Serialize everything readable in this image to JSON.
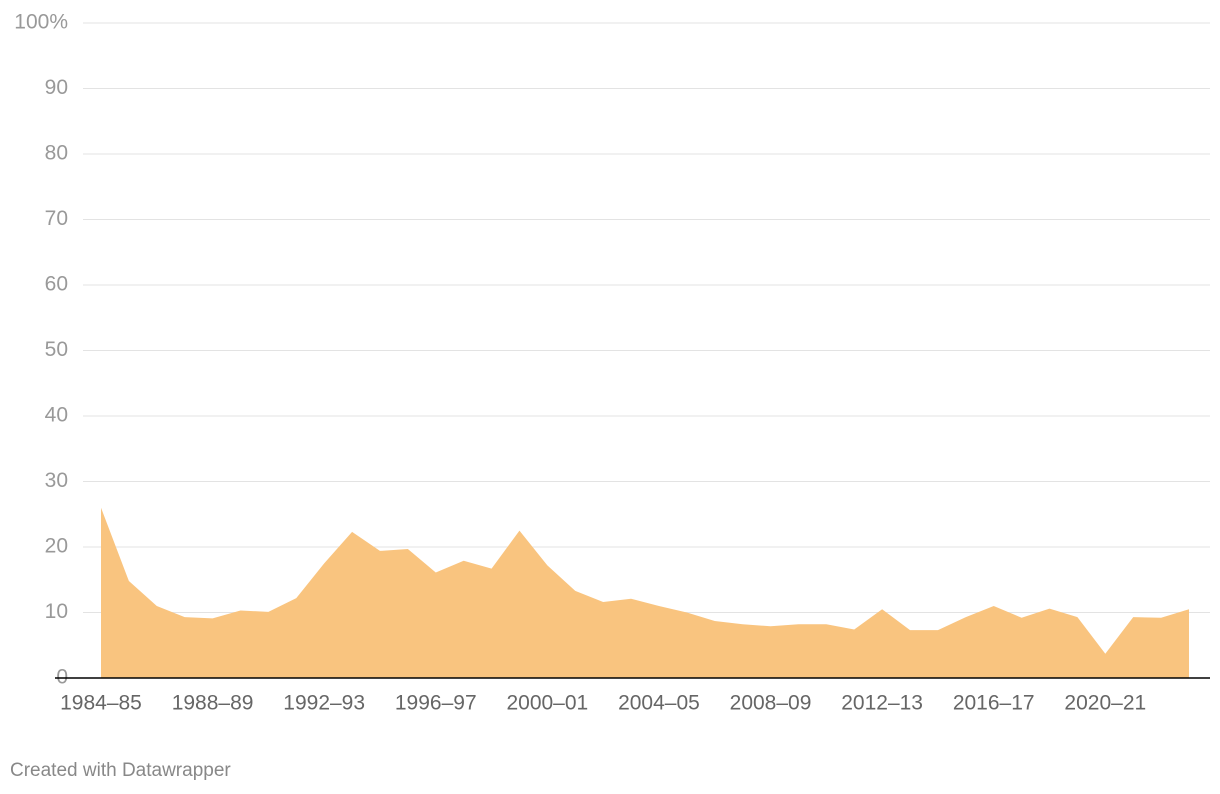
{
  "chart_data": {
    "type": "area",
    "categories": [
      "1984–85",
      null,
      null,
      null,
      "1988–89",
      null,
      null,
      null,
      "1992–93",
      null,
      null,
      null,
      "1996–97",
      null,
      null,
      null,
      "2000–01",
      null,
      null,
      null,
      "2004–05",
      null,
      null,
      null,
      "2008–09",
      null,
      null,
      null,
      "2012–13",
      null,
      null,
      null,
      "2016–17",
      null,
      null,
      null,
      "2020–21",
      null,
      null,
      null
    ],
    "values": [
      26,
      14.8,
      11,
      9.3,
      9.1,
      10.3,
      10.1,
      12.2,
      17.5,
      22.3,
      19.4,
      19.7,
      16.1,
      17.9,
      16.7,
      22.5,
      17.2,
      13.3,
      11.6,
      12.1,
      11,
      10,
      8.7,
      8.2,
      7.9,
      8.2,
      8.2,
      7.4,
      10.5,
      7.3,
      7.3,
      9.3,
      11,
      9.2,
      10.6,
      9.3,
      3.7,
      9.3,
      9.2,
      10.5
    ],
    "color": "#f9c47f",
    "ylim": [
      0,
      100
    ],
    "yticks": [
      0,
      10,
      20,
      30,
      40,
      50,
      60,
      70,
      80,
      90,
      {
        "value": 100,
        "label": "100%"
      }
    ],
    "grid": true,
    "footer": "Created with Datawrapper"
  }
}
